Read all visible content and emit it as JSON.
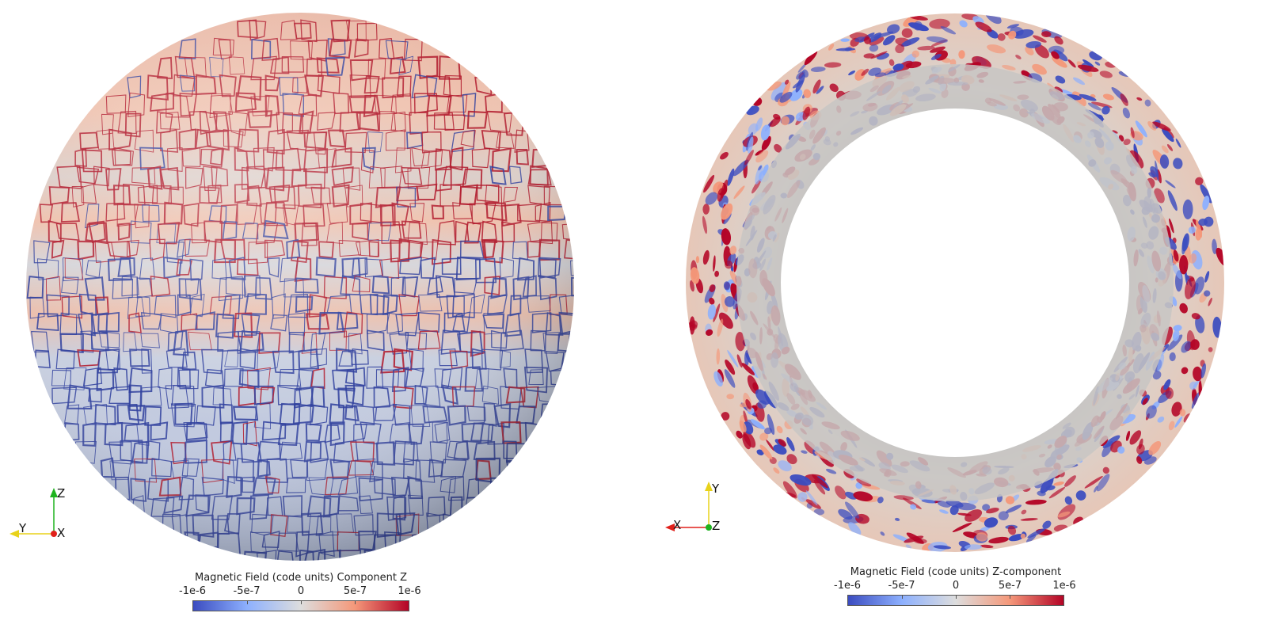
{
  "left_panel": {
    "colorbar": {
      "title": "Magnetic Field (code units) Component Z",
      "ticks": [
        "-1e-6",
        "-5e-7",
        "0",
        "5e-7",
        "1e-6"
      ]
    },
    "axes": {
      "up": "Z",
      "left": "Y",
      "origin": "X"
    }
  },
  "right_panel": {
    "colorbar": {
      "title": "Magnetic Field (code units) Z-component",
      "ticks": [
        "-1e-6",
        "-5e-7",
        "0",
        "5e-7",
        "1e-6"
      ]
    },
    "axes": {
      "up": "Y",
      "left": "X",
      "origin": "Z"
    }
  },
  "colors": {
    "negative": "#3b4cc0",
    "neutral": "#dddddd",
    "positive": "#b40426",
    "axis_x": "#e0201b",
    "axis_y": "#e8d21a",
    "axis_z": "#1fb31f"
  }
}
